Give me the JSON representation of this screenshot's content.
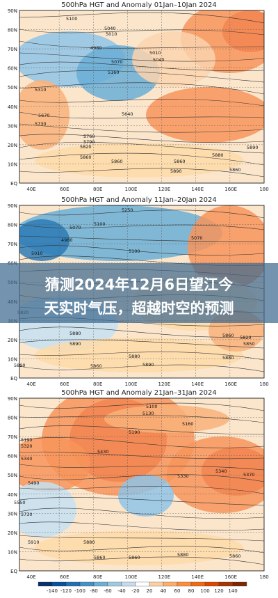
{
  "panels": [
    {
      "title": "500hPa HGT and Anomaly 01Jan–10Jan 2024",
      "lat_labels": [
        "90N",
        "80N",
        "70N",
        "60N",
        "50N",
        "40N",
        "30N",
        "20N",
        "10N",
        "EQ"
      ],
      "lon_labels": [
        "40E",
        "60E",
        "80E",
        "100E",
        "120E",
        "140E",
        "160E",
        "180"
      ],
      "contour_labels": [
        "5100",
        "5040",
        "5010",
        "4980",
        "5070",
        "5160",
        "5040",
        "5010",
        "5310",
        "5670",
        "5730",
        "5760",
        "5790",
        "5820",
        "5860",
        "5880",
        "5860",
        "5890",
        "5860",
        "5860",
        "5890",
        "5640"
      ]
    },
    {
      "title": "500hPa HGT and Anomaly 11Jan–20Jan 2024",
      "lat_labels": [
        "90N",
        "80N",
        "70N",
        "60N",
        "50N",
        "40N",
        "30N",
        "20N",
        "10N",
        "EQ"
      ],
      "lon_labels": [
        "40E",
        "60E",
        "80E",
        "100E",
        "120E",
        "140E",
        "160E",
        "180"
      ],
      "contour_labels": [
        "5250",
        "5100",
        "5070",
        "4980",
        "5010",
        "5070",
        "5100",
        "5820",
        "5880",
        "5890",
        "5880",
        "5880",
        "5890",
        "5860",
        "5890",
        "5820",
        "5850",
        "5860"
      ]
    },
    {
      "title": "500hPa HGT and Anomaly 21Jan–31Jan 2024",
      "lat_labels": [
        "90N",
        "80N",
        "70N",
        "60N",
        "50N",
        "40N",
        "30N",
        "20N",
        "10N",
        "EQ"
      ],
      "lon_labels": [
        "40E",
        "60E",
        "80E",
        "100E",
        "120E",
        "140E",
        "160E",
        "180"
      ],
      "contour_labels": [
        "5100",
        "5130",
        "5160",
        "5190",
        "5190",
        "5320",
        "5340",
        "5430",
        "5490",
        "5550",
        "5730",
        "5910",
        "5880",
        "5860",
        "5340",
        "5370",
        "5330",
        "5880",
        "5860",
        "5860"
      ]
    }
  ],
  "overlay_title": [
    "猜测2024年12月6日望江今",
    "天实时气压，超越时空的预测"
  ],
  "colorbar": {
    "labels": [
      "-140",
      "-120",
      "-100",
      "-80",
      "-60",
      "-40",
      "-20",
      "20",
      "40",
      "60",
      "80",
      "100",
      "120",
      "140"
    ]
  }
}
